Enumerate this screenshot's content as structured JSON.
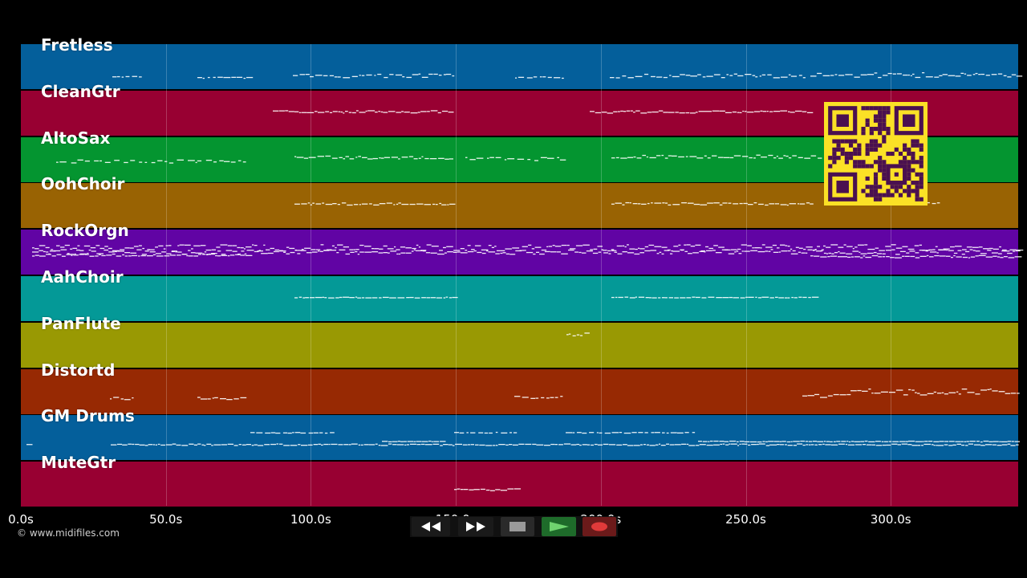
{
  "tracks": [
    {
      "name": "Fretless",
      "color": "#045f9b"
    },
    {
      "name": "CleanGtr",
      "color": "#980032"
    },
    {
      "name": "AltoSax",
      "color": "#049530"
    },
    {
      "name": "OohChoir",
      "color": "#996303"
    },
    {
      "name": "RockOrgn",
      "color": "#6104a4"
    },
    {
      "name": "AahChoir",
      "color": "#049997"
    },
    {
      "name": "PanFlute",
      "color": "#999903"
    },
    {
      "name": "Distortd",
      "color": "#972903"
    },
    {
      "name": "GM Drums",
      "color": "#045f9b"
    },
    {
      "name": "MuteGtr",
      "color": "#980032"
    }
  ],
  "timeline": {
    "ticks": [
      "0.0s",
      "50.0s",
      "100.0s",
      "150.0s",
      "200.0s",
      "250.0s",
      "300.0s"
    ]
  },
  "copyright": "© www.midifiles.com",
  "transport": {
    "buttons": [
      {
        "name": "rewind-button",
        "icon": "rewind-icon"
      },
      {
        "name": "fast-forward-button",
        "icon": "fast-forward-icon"
      },
      {
        "name": "stop-button",
        "icon": "stop-icon"
      },
      {
        "name": "play-button",
        "icon": "play-icon"
      },
      {
        "name": "record-button",
        "icon": "record-icon"
      }
    ]
  },
  "qr_code": {
    "icon": "qr-code-icon",
    "color": "#fbe126",
    "dark": "#4a1050"
  }
}
